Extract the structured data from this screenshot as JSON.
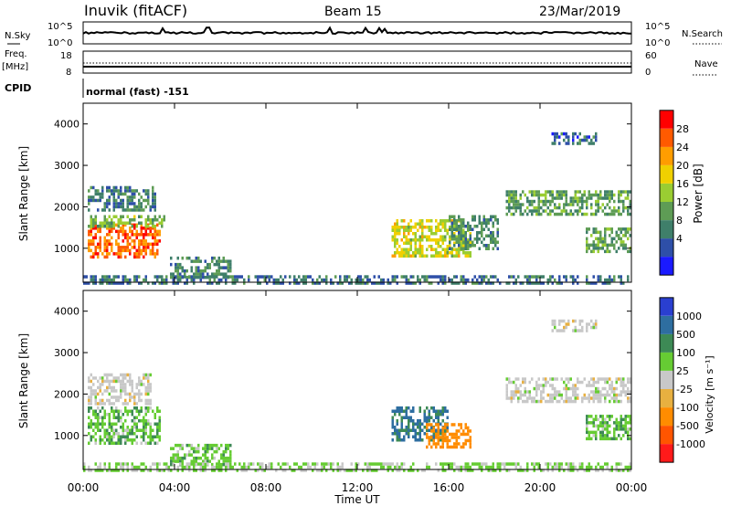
{
  "header": {
    "station": "Inuvik (fitACF)",
    "beam": "Beam 15",
    "date": "23/Mar/2019"
  },
  "noise_panel": {
    "left_label": "N.Sky",
    "right_label": "N.Search",
    "ticks_left": [
      "10^5",
      "10^0"
    ],
    "ticks_right": [
      "10^5",
      "10^0"
    ]
  },
  "freq_panel": {
    "left_label_line1": "Freq.",
    "left_label_line2": "[MHz]",
    "right_label": "Nave",
    "ticks_left": [
      "18",
      "8"
    ],
    "ticks_right": [
      "60",
      "0"
    ]
  },
  "cpid": {
    "label": "CPID",
    "mode": "normal (fast) -151"
  },
  "colors": {
    "power_scale": [
      "#1a1aff",
      "#2e4fa8",
      "#3f7f6a",
      "#5e9c55",
      "#9acd32",
      "#f0d000",
      "#ff9d00",
      "#ff5a00",
      "#ff0000"
    ],
    "velocity_scale": [
      "#2a3fd0",
      "#2e6ea0",
      "#3d8a55",
      "#66cc33",
      "#c8c8c8",
      "#e8b040",
      "#ff8c00",
      "#ff5500",
      "#ff1a1a"
    ]
  },
  "chart_data": [
    {
      "type": "heatmap",
      "name": "power",
      "xlabel": "Time UT",
      "ylabel": "Slant Range [km]",
      "colorbar_label": "Power [dB]",
      "x_ticks": [
        "00:00",
        "04:00",
        "08:00",
        "12:00",
        "16:00",
        "20:00",
        "00:00"
      ],
      "y_ticks": [
        1000,
        2000,
        3000,
        4000
      ],
      "xlim_hours": [
        0,
        24
      ],
      "ylim_km": [
        180,
        4500
      ],
      "colorbar_ticks": [
        "28",
        "24",
        "20",
        "16",
        "12",
        "8",
        "4"
      ],
      "colorbar_range": [
        0,
        32
      ],
      "regions": [
        {
          "t0": 0.2,
          "t1": 3.4,
          "r0": 800,
          "r1": 1600,
          "value": 26
        },
        {
          "t0": 0.2,
          "t1": 3.6,
          "r0": 1500,
          "r1": 1800,
          "value": 14
        },
        {
          "t0": 0.2,
          "t1": 3.2,
          "r0": 1900,
          "r1": 2500,
          "value": 9
        },
        {
          "t0": 3.8,
          "t1": 6.5,
          "r0": 300,
          "r1": 800,
          "value": 10
        },
        {
          "t0": 13.5,
          "t1": 17.0,
          "r0": 800,
          "r1": 1700,
          "value": 18
        },
        {
          "t0": 16.0,
          "t1": 18.2,
          "r0": 1000,
          "r1": 1800,
          "value": 10
        },
        {
          "t0": 18.5,
          "t1": 24.0,
          "r0": 1800,
          "r1": 2400,
          "value": 12
        },
        {
          "t0": 20.5,
          "t1": 22.5,
          "r0": 3500,
          "r1": 3800,
          "value": 7
        },
        {
          "t0": 22.0,
          "t1": 24.0,
          "r0": 900,
          "r1": 1500,
          "value": 12
        },
        {
          "t0": 0.0,
          "t1": 24.0,
          "r0": 180,
          "r1": 350,
          "value": 8
        }
      ]
    },
    {
      "type": "heatmap",
      "name": "velocity",
      "xlabel": "Time UT",
      "ylabel": "Slant Range [km]",
      "colorbar_label": "Velocity [m s⁻¹]",
      "x_ticks": [
        "00:00",
        "04:00",
        "08:00",
        "12:00",
        "16:00",
        "20:00",
        "00:00"
      ],
      "y_ticks": [
        1000,
        2000,
        3000,
        4000
      ],
      "xlim_hours": [
        0,
        24
      ],
      "ylim_km": [
        180,
        4500
      ],
      "colorbar_ticks": [
        "1000",
        "500",
        "100",
        "25",
        "-25",
        "-100",
        "-500",
        "-1000"
      ],
      "regions": [
        {
          "t0": 0.2,
          "t1": 3.4,
          "r0": 800,
          "r1": 1700,
          "value": 80
        },
        {
          "t0": 0.2,
          "t1": 3.0,
          "r0": 1800,
          "r1": 2500,
          "value": 0
        },
        {
          "t0": 3.8,
          "t1": 6.5,
          "r0": 300,
          "r1": 800,
          "value": 60
        },
        {
          "t0": 13.5,
          "t1": 16.0,
          "r0": 900,
          "r1": 1700,
          "value": 600
        },
        {
          "t0": 15.0,
          "t1": 17.0,
          "r0": 700,
          "r1": 1300,
          "value": -300
        },
        {
          "t0": 18.5,
          "t1": 24.0,
          "r0": 1800,
          "r1": 2400,
          "value": 0
        },
        {
          "t0": 20.5,
          "t1": 22.5,
          "r0": 3500,
          "r1": 3800,
          "value": 0
        },
        {
          "t0": 22.0,
          "t1": 24.0,
          "r0": 900,
          "r1": 1500,
          "value": 80
        },
        {
          "t0": 0.0,
          "t1": 24.0,
          "r0": 180,
          "r1": 350,
          "value": 40
        }
      ]
    }
  ]
}
